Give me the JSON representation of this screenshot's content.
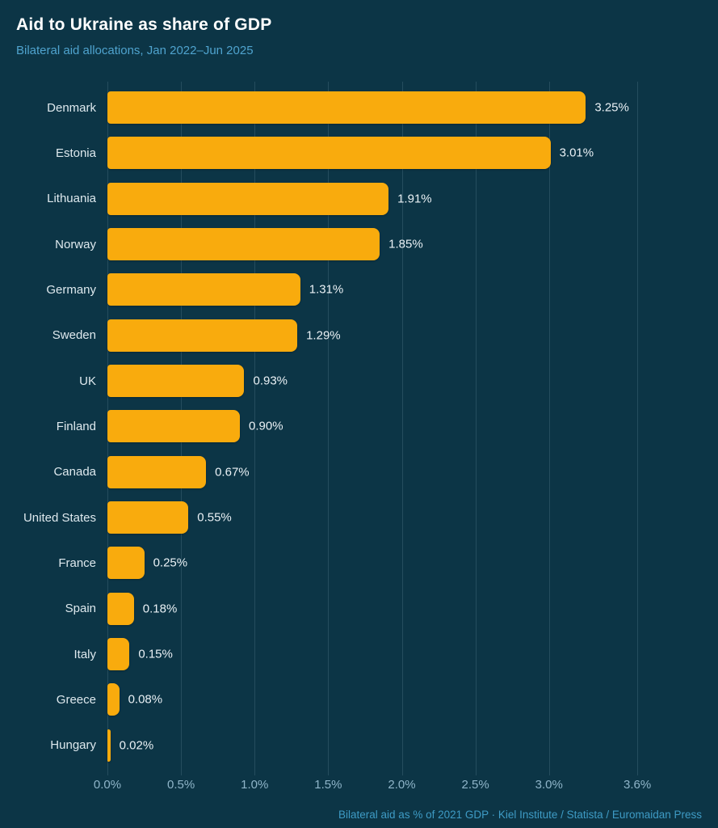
{
  "header": {
    "title": "Aid to Ukraine as share of GDP",
    "subtitle": "Bilateral aid allocations, Jan 2022–Jun 2025"
  },
  "footer": {
    "source": "Bilateral aid as % of 2021 GDP · Kiel Institute / Statista / Euromaidan Press"
  },
  "colors": {
    "background": "#0C3546",
    "bar": "#F9AB0D",
    "title_text": "#FFFFFF",
    "subtitle_text": "#4FA3CE",
    "country_label_text": "#DEE9EE",
    "value_label_text": "#EAF1F5",
    "tick_label_text": "#8FB5C9",
    "gridline": "rgba(168,205,222,0.16)",
    "footer_text": "#3E9BC5"
  },
  "chart_data": {
    "type": "bar",
    "orientation": "horizontal",
    "title": "Aid to Ukraine as share of GDP",
    "subtitle": "Bilateral aid allocations, Jan 2022–Jun 2025",
    "xlabel": "Bilateral aid as % of 2021 GDP",
    "ylabel": "",
    "grid": true,
    "legend": false,
    "xlim": [
      0,
      4.0
    ],
    "categories": [
      "Denmark",
      "Estonia",
      "Lithuania",
      "Norway",
      "Germany",
      "Sweden",
      "UK",
      "Finland",
      "Canada",
      "United States",
      "France",
      "Spain",
      "Italy",
      "Greece",
      "Hungary"
    ],
    "values": [
      3.25,
      3.01,
      1.91,
      1.85,
      1.31,
      1.29,
      0.93,
      0.9,
      0.67,
      0.55,
      0.25,
      0.18,
      0.15,
      0.08,
      0.02
    ],
    "value_labels": [
      "3.25%",
      "3.01%",
      "1.91%",
      "1.85%",
      "1.31%",
      "1.29%",
      "0.93%",
      "0.90%",
      "0.67%",
      "0.55%",
      "0.25%",
      "0.18%",
      "0.15%",
      "0.08%",
      "0.02%"
    ],
    "x_ticks": [
      0.0,
      0.5,
      1.0,
      1.5,
      2.0,
      2.5,
      3.0,
      3.6
    ],
    "x_tick_labels": [
      "0.0%",
      "0.5%",
      "1.0%",
      "1.5%",
      "2.0%",
      "2.5%",
      "3.0%",
      "3.6%"
    ]
  }
}
